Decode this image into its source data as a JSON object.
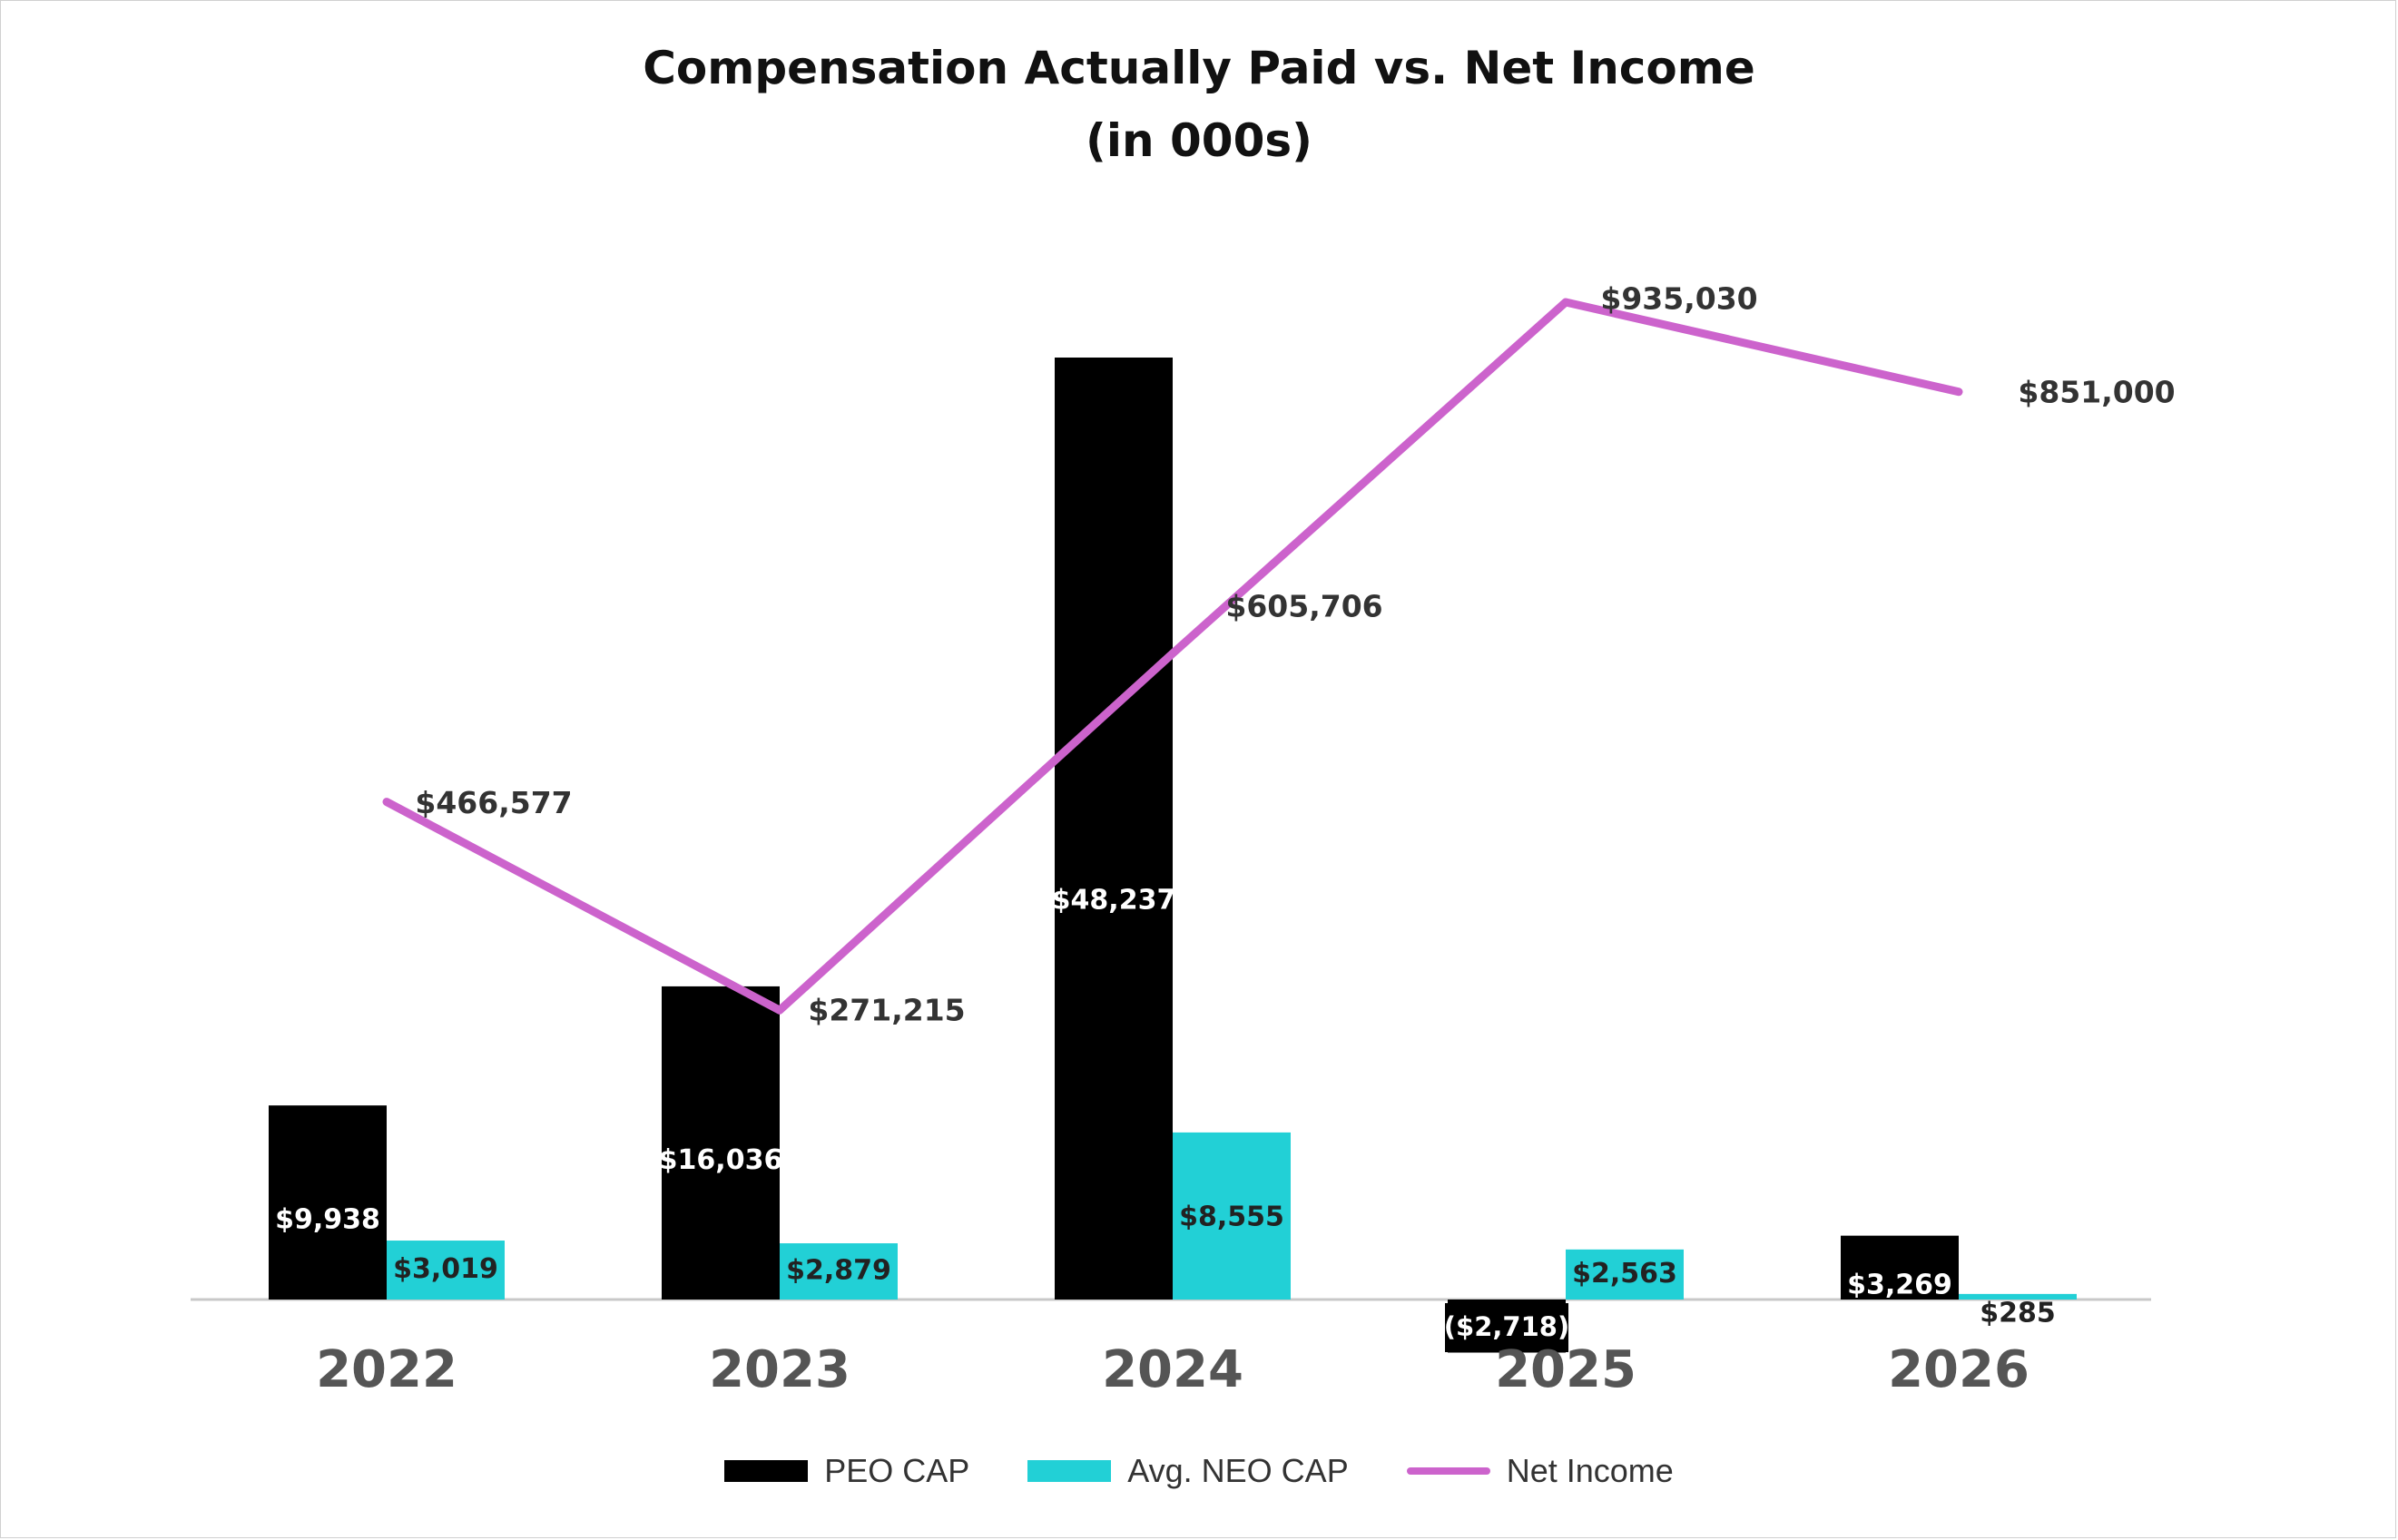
{
  "title_line1": "Compensation Actually Paid vs. Net Income",
  "title_line2": "(in 000s)",
  "colors": {
    "peo": "#000000",
    "neo": "#22d0d6",
    "net": "#cc63cc",
    "axis": "#c8c8c8"
  },
  "chart_data": {
    "type": "bar",
    "categories": [
      "2022",
      "2023",
      "2024",
      "2025",
      "2026"
    ],
    "series": [
      {
        "name": "PEO CAP",
        "kind": "bar",
        "values": [
          9938,
          16036,
          48237,
          -2718,
          3269
        ],
        "labels": [
          "$9,938",
          "$16,036",
          "$48,237",
          "($2,718)",
          "$3,269"
        ]
      },
      {
        "name": "Avg. NEO CAP",
        "kind": "bar",
        "values": [
          3019,
          2879,
          8555,
          2563,
          285
        ],
        "labels": [
          "$3,019",
          "$2,879",
          "$8,555",
          "$2,563",
          "$285"
        ]
      },
      {
        "name": "Net Income",
        "kind": "line",
        "values": [
          466577,
          271215,
          605706,
          935030,
          851000
        ],
        "labels": [
          "$466,577",
          "$271,215",
          "$605,706",
          "$935,030",
          "$851,000"
        ]
      }
    ],
    "bar_axis_range": [
      -2718,
      48237
    ],
    "line_axis_range": [
      0,
      935030
    ],
    "grid": false,
    "legend_position": "bottom"
  }
}
